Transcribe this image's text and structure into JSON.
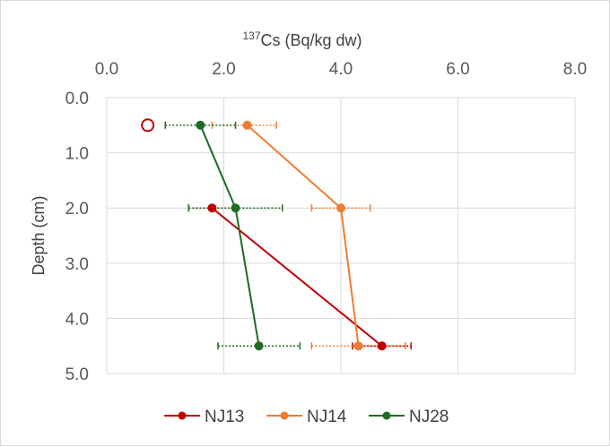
{
  "chart_data": {
    "type": "scatter",
    "title_sup": "137",
    "title_main": "Cs (Bq/kg dw)",
    "xlabel": "137Cs (Bq/kg dw)",
    "ylabel": "Depth (cm)",
    "xlim": [
      0,
      8
    ],
    "ylim": [
      0,
      5
    ],
    "x_axis_position": "top",
    "y_axis_reversed": true,
    "grid": true,
    "x_ticks": [
      "0.0",
      "2.0",
      "4.0",
      "6.0",
      "8.0"
    ],
    "y_ticks": [
      "0.0",
      "1.0",
      "2.0",
      "3.0",
      "4.0",
      "5.0"
    ],
    "legend_position": "bottom",
    "series": [
      {
        "name": "NJ13",
        "color": "#c00000",
        "points": [
          {
            "x": 1.8,
            "y": 2.0
          },
          {
            "x": 4.7,
            "y": 4.5
          }
        ],
        "errors": [
          {
            "lo": 1.4,
            "hi": 2.2
          },
          {
            "lo": 4.2,
            "hi": 5.2
          }
        ],
        "open_points": [
          {
            "x": 0.7,
            "y": 0.5
          }
        ]
      },
      {
        "name": "NJ14",
        "color": "#ed7d31",
        "points": [
          {
            "x": 2.4,
            "y": 0.5
          },
          {
            "x": 4.0,
            "y": 2.0
          },
          {
            "x": 4.3,
            "y": 4.5
          }
        ],
        "errors": [
          {
            "lo": 1.8,
            "hi": 2.9
          },
          {
            "lo": 3.5,
            "hi": 4.5
          },
          {
            "lo": 3.5,
            "hi": 5.1
          }
        ]
      },
      {
        "name": "NJ28",
        "color": "#1e6b24",
        "points": [
          {
            "x": 1.6,
            "y": 0.5
          },
          {
            "x": 2.2,
            "y": 2.0
          },
          {
            "x": 2.6,
            "y": 4.5
          }
        ],
        "errors": [
          {
            "lo": 1.0,
            "hi": 2.2
          },
          {
            "lo": 1.4,
            "hi": 3.0
          },
          {
            "lo": 1.9,
            "hi": 3.3
          }
        ]
      }
    ]
  }
}
